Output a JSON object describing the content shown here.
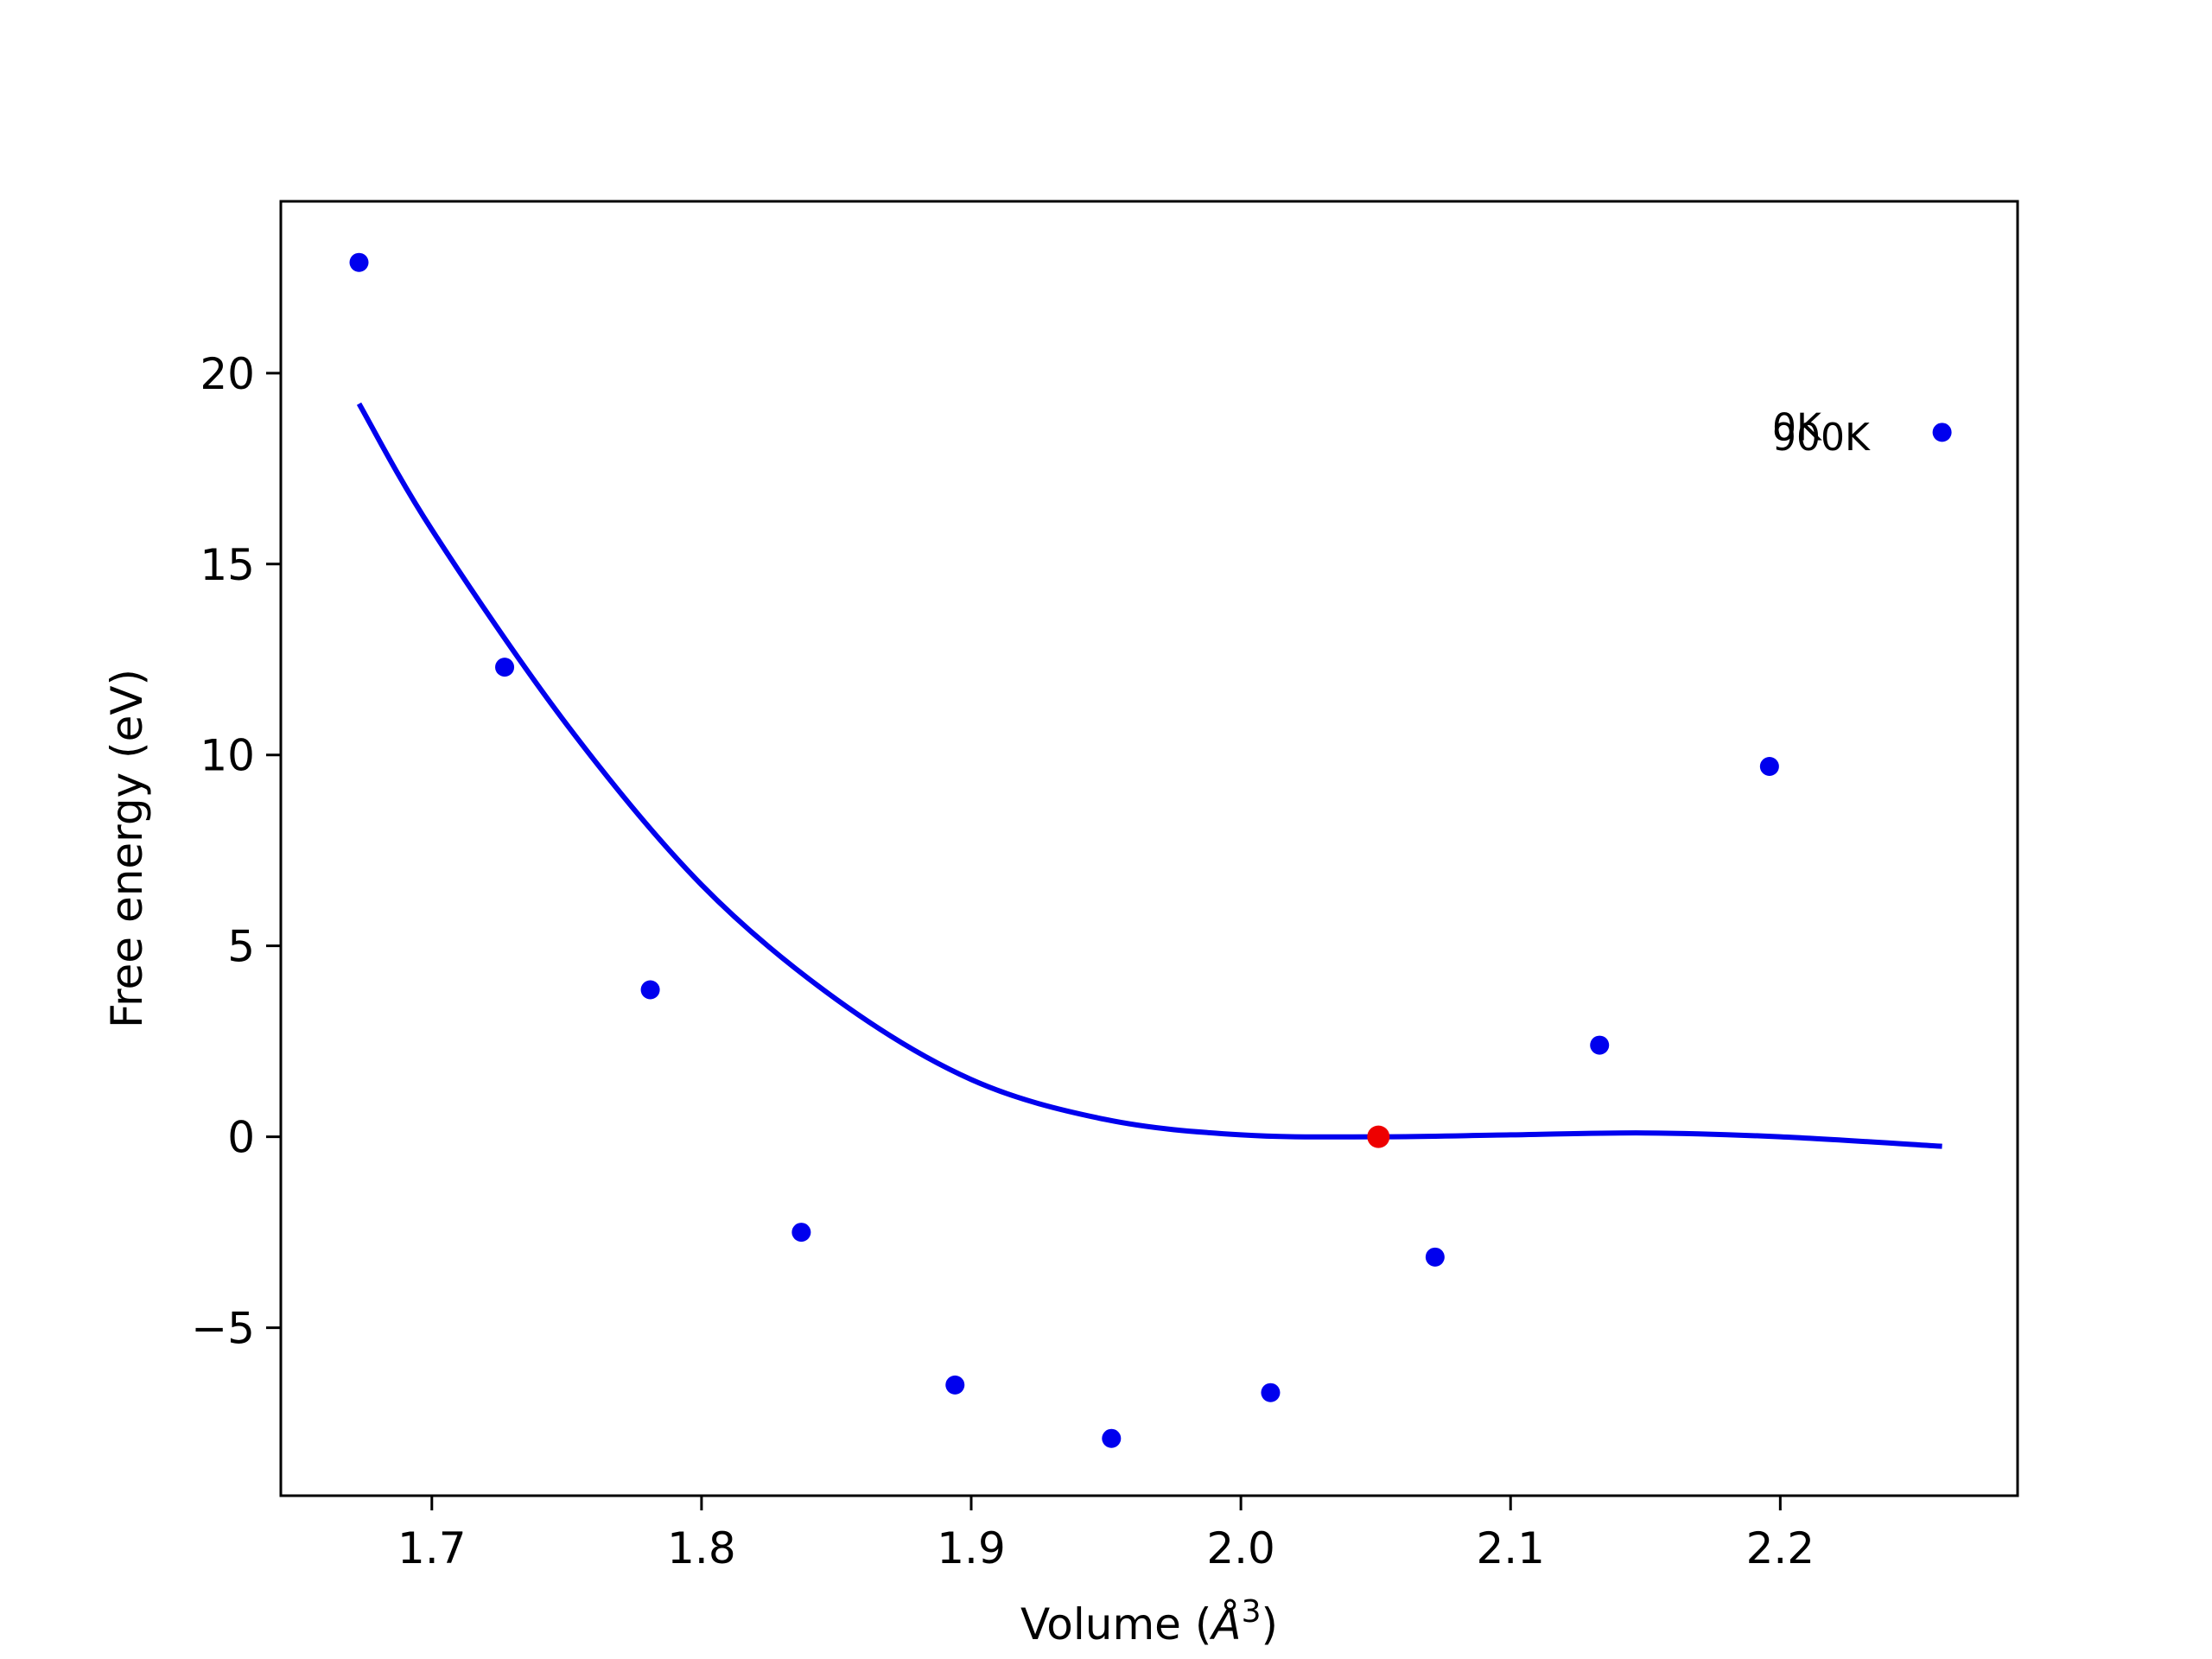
{
  "chart_data": {
    "type": "scatter",
    "xlabel": "Volume (",
    "xlabel_sym": "Å",
    "xlabel_sup": "3",
    "xlabel_end": ")",
    "ylabel": "Free energy (eV)",
    "xlim": [
      1.644,
      2.288
    ],
    "ylim": [
      -9.4,
      24.5
    ],
    "xticks": [
      1.7,
      1.8,
      1.9,
      2.0,
      2.1,
      2.2
    ],
    "xtick_labels": [
      "1.7",
      "1.8",
      "1.9",
      "2.0",
      "2.1",
      "2.2"
    ],
    "yticks": [
      -5,
      0,
      5,
      10,
      15,
      20
    ],
    "ytick_labels": [
      "−5",
      "0",
      "5",
      "10",
      "15",
      "20"
    ],
    "grid": false,
    "points": {
      "color": "#0000ee",
      "x": [
        1.673,
        1.727,
        1.781,
        1.837,
        1.894,
        1.952,
        2.011,
        2.072,
        2.133,
        2.196,
        2.26
      ],
      "y": [
        22.9,
        12.3,
        3.85,
        -2.5,
        -6.5,
        -7.9,
        -6.7,
        -3.15,
        2.4,
        9.7,
        18.45
      ]
    },
    "fit_curve": {
      "color": "#0000ee",
      "x": [
        1.673,
        1.7,
        1.75,
        1.8,
        1.85,
        1.9,
        1.95,
        2.0,
        2.05,
        2.1,
        2.15,
        2.2,
        2.26
      ],
      "y": [
        19.2,
        15.9,
        10.8,
        6.6,
        3.6,
        1.5,
        0.45,
        0.05,
        0.0,
        0.05,
        0.1,
        0.0,
        -0.25
      ]
    },
    "minimum_point": {
      "color": "#ee0000",
      "x": 2.051,
      "y": 0.0
    },
    "annotations": [
      {
        "text": "0K",
        "x": 2.197,
        "y": 18.6
      },
      {
        "text": "900K",
        "x": 2.197,
        "y": 18.35
      }
    ]
  }
}
